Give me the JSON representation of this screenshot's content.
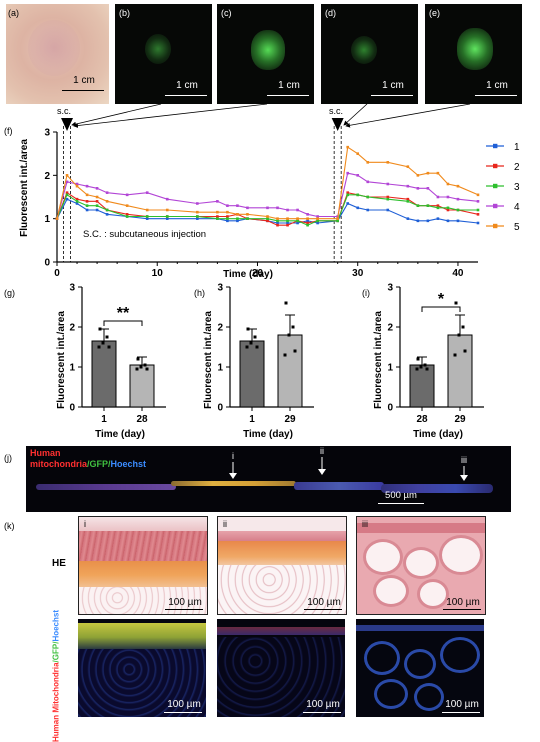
{
  "panel_labels": {
    "a": "(a)",
    "b": "(b)",
    "c": "(c)",
    "d": "(d)",
    "e": "(e)",
    "f": "(f)",
    "g": "(g)",
    "h": "(h)",
    "i": "(i)",
    "j": "(j)",
    "k": "(k)"
  },
  "scale_1cm": "1 cm",
  "scale_500um": "500 µm",
  "scale_100um": "100 µm",
  "sc_label": "s.c.",
  "sc_note": "S.C. : subcutaneous injection",
  "j_stain": {
    "part1": "Human mitochondria",
    "part2": "/GFP/",
    "part3": "Hoechst",
    "line1": "Human",
    "line2a": "mitochondria",
    "line2b": "/GFP/",
    "line2c": "Hoechst"
  },
  "j_markers": [
    "i",
    "ii",
    "iii"
  ],
  "k_row_he": "HE",
  "k_row_fluor": {
    "part1": "Human Mitochondria",
    "part2": "/GFP/",
    "part3": "Hoechst"
  },
  "k_cols": [
    "i",
    "ii",
    "iii"
  ],
  "colors": {
    "s1": "#1f5fd6",
    "s2": "#e8261c",
    "s3": "#2dbf2d",
    "s4": "#b245d6",
    "s5": "#f08a1c",
    "bar_dark": "#6b6b6b",
    "bar_light": "#b5b5b5",
    "gfp": "#40c040",
    "mito": "#ff3030",
    "hoechst": "#3b8cff"
  },
  "chart_data": [
    {
      "type": "line",
      "xlabel": "Time (day)",
      "ylabel": "Fluorescent int./area",
      "xlim": [
        0,
        42
      ],
      "ylim": [
        0,
        3
      ],
      "xticks": [
        0,
        10,
        20,
        30,
        40
      ],
      "yticks": [
        0,
        1,
        2,
        3
      ],
      "injection_days": [
        1,
        28
      ],
      "legend_position": "right",
      "series": [
        {
          "name": "1",
          "x": [
            0,
            1,
            2,
            3,
            4,
            5,
            7,
            9,
            11,
            14,
            16,
            17,
            18,
            19,
            21,
            22,
            23,
            24,
            25,
            26,
            28,
            29,
            30,
            31,
            33,
            35,
            36,
            37,
            38,
            39,
            40,
            42
          ],
          "y": [
            1.0,
            1.45,
            1.35,
            1.2,
            1.2,
            1.1,
            1.05,
            1.0,
            1.0,
            1.0,
            1.0,
            0.95,
            0.95,
            1.0,
            0.95,
            0.9,
            0.9,
            0.9,
            0.95,
            0.9,
            0.95,
            1.35,
            1.25,
            1.2,
            1.2,
            1.0,
            0.95,
            0.95,
            1.0,
            0.95,
            0.95,
            0.9
          ]
        },
        {
          "name": "2",
          "x": [
            0,
            1,
            2,
            3,
            4,
            5,
            7,
            9,
            11,
            14,
            16,
            17,
            18,
            19,
            21,
            22,
            23,
            24,
            25,
            26,
            28,
            29,
            30,
            31,
            33,
            35,
            36,
            37,
            38,
            39,
            40,
            42
          ],
          "y": [
            1.0,
            1.6,
            1.45,
            1.4,
            1.4,
            1.2,
            1.1,
            1.05,
            1.05,
            1.05,
            1.05,
            1.05,
            1.1,
            1.0,
            0.95,
            0.85,
            0.85,
            0.95,
            0.9,
            0.95,
            0.95,
            1.6,
            1.55,
            1.5,
            1.5,
            1.45,
            1.3,
            1.3,
            1.3,
            1.2,
            1.2,
            1.1
          ]
        },
        {
          "name": "3",
          "x": [
            0,
            1,
            2,
            3,
            4,
            5,
            7,
            9,
            11,
            14,
            16,
            17,
            18,
            19,
            21,
            22,
            23,
            24,
            25,
            26,
            28,
            29,
            30,
            31,
            33,
            35,
            36,
            37,
            38,
            39,
            40,
            42
          ],
          "y": [
            1.0,
            1.55,
            1.4,
            1.3,
            1.3,
            1.2,
            1.05,
            1.05,
            1.05,
            1.05,
            1.0,
            1.0,
            1.0,
            1.0,
            1.0,
            0.95,
            0.95,
            0.95,
            0.85,
            0.95,
            0.95,
            1.55,
            1.55,
            1.5,
            1.45,
            1.4,
            1.3,
            1.3,
            1.25,
            1.25,
            1.2,
            1.2
          ]
        },
        {
          "name": "4",
          "x": [
            0,
            1,
            2,
            3,
            4,
            5,
            7,
            9,
            11,
            14,
            16,
            17,
            18,
            19,
            21,
            22,
            23,
            24,
            25,
            26,
            28,
            29,
            30,
            31,
            33,
            35,
            36,
            37,
            38,
            39,
            40,
            42
          ],
          "y": [
            1.0,
            1.85,
            1.8,
            1.75,
            1.7,
            1.6,
            1.55,
            1.6,
            1.45,
            1.35,
            1.4,
            1.3,
            1.3,
            1.25,
            1.25,
            1.25,
            1.2,
            1.2,
            1.1,
            1.05,
            1.05,
            2.05,
            2.0,
            1.85,
            1.8,
            1.75,
            1.7,
            1.7,
            1.5,
            1.5,
            1.45,
            1.4
          ]
        },
        {
          "name": "5",
          "x": [
            0,
            1,
            2,
            3,
            4,
            5,
            7,
            9,
            11,
            14,
            16,
            17,
            18,
            19,
            21,
            22,
            23,
            24,
            25,
            26,
            28,
            29,
            30,
            31,
            33,
            35,
            36,
            37,
            38,
            39,
            40,
            42
          ],
          "y": [
            1.0,
            2.0,
            1.75,
            1.55,
            1.5,
            1.4,
            1.3,
            1.2,
            1.2,
            1.15,
            1.15,
            1.15,
            1.1,
            1.1,
            1.05,
            1.0,
            1.0,
            1.0,
            1.0,
            1.0,
            1.0,
            2.65,
            2.5,
            2.3,
            2.3,
            2.2,
            2.0,
            2.05,
            2.05,
            1.8,
            1.75,
            1.55
          ]
        }
      ]
    },
    {
      "type": "bar",
      "categories": [
        "1",
        "28"
      ],
      "values": [
        1.65,
        1.05
      ],
      "errors": [
        0.3,
        0.2
      ],
      "points": [
        [
          1.95,
          1.75,
          1.6,
          1.5,
          1.5
        ],
        [
          1.2,
          1.05,
          1.0,
          0.95,
          0.95
        ]
      ],
      "xlabel": "Time (day)",
      "ylabel": "Fluorescent int./area",
      "ylim": [
        0,
        3
      ],
      "yticks": [
        0,
        1,
        2,
        3
      ],
      "significance": "**"
    },
    {
      "type": "bar",
      "categories": [
        "1",
        "29"
      ],
      "values": [
        1.65,
        1.8
      ],
      "errors": [
        0.3,
        0.5
      ],
      "points": [
        [
          1.95,
          1.75,
          1.6,
          1.5,
          1.5
        ],
        [
          2.6,
          2.0,
          1.8,
          1.4,
          1.3
        ]
      ],
      "xlabel": "Time (day)",
      "ylabel": "Fluorescent int./area",
      "ylim": [
        0,
        3
      ],
      "yticks": [
        0,
        1,
        2,
        3
      ],
      "significance": ""
    },
    {
      "type": "bar",
      "categories": [
        "28",
        "29"
      ],
      "values": [
        1.05,
        1.8
      ],
      "errors": [
        0.2,
        0.5
      ],
      "points": [
        [
          1.2,
          1.05,
          1.0,
          0.95,
          0.95
        ],
        [
          2.6,
          2.0,
          1.8,
          1.4,
          1.3
        ]
      ],
      "xlabel": "Time (day)",
      "ylabel": "Fluorescent int./area",
      "ylim": [
        0,
        3
      ],
      "yticks": [
        0,
        1,
        2,
        3
      ],
      "significance": "*"
    }
  ]
}
